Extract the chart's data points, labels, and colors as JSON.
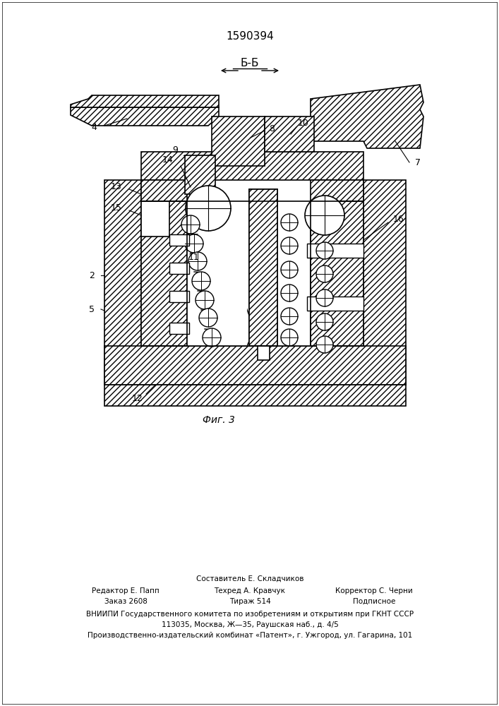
{
  "patent_number": "1590394",
  "figure_label": "Фиг. 3",
  "section_label": "Б-Б",
  "bg_color": "#ffffff",
  "footer_lines": [
    "Составитель Е. Складчиков",
    "Редактор Е. Папп",
    "Техред А. Кравчук",
    "Корректор С. Черни",
    "Заказ 2608",
    "Тираж 514",
    "Подписное",
    "ВНИИПИ Государственного комитета по изобретениям и открытиям при ГКНТ СССР",
    "113035, Москва, Ж—35, Раушская наб., д. 4/5",
    "Производственно-издательский комбинат «Патент», г. Ужгород, ул. Гагарина, 101"
  ]
}
